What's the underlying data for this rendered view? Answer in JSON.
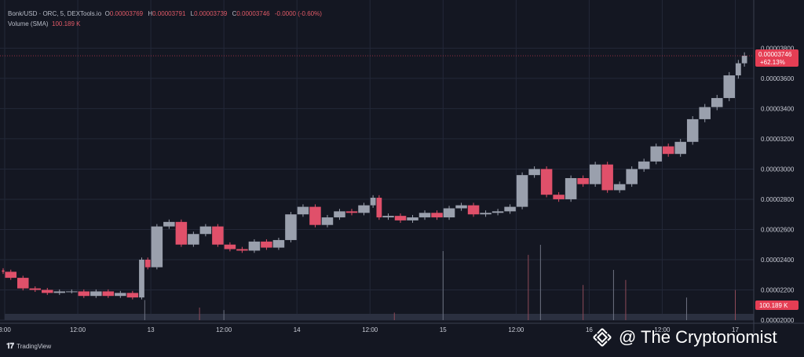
{
  "legend": {
    "symbol": "Bonk/USD · ORC, 5, DEXTools.io",
    "o_label": "O",
    "o_value": "0.00003769",
    "h_label": "H",
    "h_value": "0.00003791",
    "l_label": "L",
    "l_value": "0.00003739",
    "c_label": "C",
    "c_value": "0.00003746",
    "change": "-0.0000 (-0.60%)",
    "volume_label": "Volume (SMA)",
    "volume_value": "100.189 K"
  },
  "branding": {
    "tradingview": "TradingView",
    "watermark": "@ The Cryptonomist"
  },
  "badges": {
    "price_value": "0.00003746",
    "price_change": "+62.13%",
    "volume_value": "100.189 K"
  },
  "colors": {
    "background": "#141722",
    "grid": "#232838",
    "up": "#9aa0ad",
    "down": "#e0506a",
    "badge": "#e53e54",
    "axis_text": "#c9ccd6"
  },
  "chart_data": {
    "type": "candlestick",
    "x_tick_labels": [
      "3:00",
      "12:00",
      "13",
      "12:00",
      "14",
      "12:00",
      "15",
      "12:00",
      "16",
      "12:00",
      "17"
    ],
    "x_tick_index": [
      0,
      12,
      24,
      36,
      48,
      60,
      72,
      84,
      96,
      108,
      120
    ],
    "y_tick_labels": [
      "0.00003800",
      "0.00003600",
      "0.00003400",
      "0.00003200",
      "0.00003000",
      "0.00002800",
      "0.00002600",
      "0.00002400",
      "0.00002200",
      "0.00002000"
    ],
    "ylim": [
      2e-05,
      3.88e-05
    ],
    "grid": true,
    "series": [
      {
        "name": "price",
        "x": [
          0,
          2,
          4,
          6,
          8,
          10,
          12,
          14,
          16,
          18,
          20,
          22,
          23,
          24,
          26,
          28,
          30,
          32,
          34,
          36,
          38,
          40,
          42,
          44,
          46,
          48,
          50,
          52,
          54,
          56,
          58,
          60,
          61,
          62,
          64,
          66,
          68,
          70,
          72,
          74,
          76,
          78,
          80,
          82,
          84,
          86,
          88,
          90,
          92,
          94,
          96,
          98,
          100,
          102,
          104,
          106,
          108,
          110,
          112,
          114,
          116,
          118,
          120,
          121,
          122
        ],
        "values": [
          2.32e-05,
          2.28e-05,
          2.21e-05,
          2.2e-05,
          2.18e-05,
          2.19e-05,
          2.19e-05,
          2.16e-05,
          2.19e-05,
          2.16e-05,
          2.18e-05,
          2.15e-05,
          2.4e-05,
          2.35e-05,
          2.62e-05,
          2.65e-05,
          2.5e-05,
          2.57e-05,
          2.62e-05,
          2.5e-05,
          2.47e-05,
          2.46e-05,
          2.52e-05,
          2.48e-05,
          2.53e-05,
          2.7e-05,
          2.75e-05,
          2.63e-05,
          2.68e-05,
          2.72e-05,
          2.71e-05,
          2.76e-05,
          2.81e-05,
          2.68e-05,
          2.69e-05,
          2.66e-05,
          2.68e-05,
          2.71e-05,
          2.68e-05,
          2.74e-05,
          2.76e-05,
          2.7e-05,
          2.71e-05,
          2.72e-05,
          2.75e-05,
          2.96e-05,
          3e-05,
          2.83e-05,
          2.8e-05,
          2.94e-05,
          2.9e-05,
          3.03e-05,
          2.86e-05,
          2.9e-05,
          3e-05,
          3.05e-05,
          3.15e-05,
          3.1e-05,
          3.18e-05,
          3.33e-05,
          3.41e-05,
          3.47e-05,
          3.62e-05,
          3.7e-05,
          3.75e-05
        ]
      },
      {
        "name": "volume",
        "x": [
          23,
          32,
          36,
          64,
          72,
          86,
          88,
          95,
          100,
          102,
          112,
          120
        ],
        "values": [
          0.16,
          0.1,
          0.08,
          0.06,
          0.55,
          0.52,
          0.6,
          0.28,
          0.4,
          0.32,
          0.18,
          0.24
        ]
      }
    ]
  }
}
